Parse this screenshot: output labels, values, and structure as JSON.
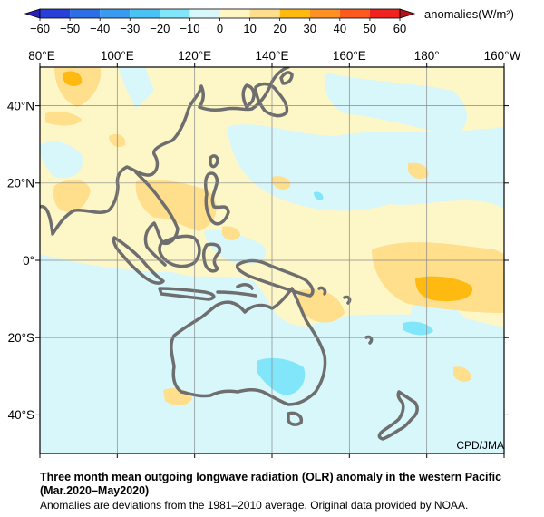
{
  "legend": {
    "unit_label": "anomalies(W/m²)",
    "ticks": [
      -60,
      -50,
      -40,
      -30,
      -20,
      -10,
      0,
      10,
      20,
      30,
      40,
      50,
      60
    ],
    "colors": [
      "#2a3fd8",
      "#2b6ee6",
      "#3a9cf0",
      "#49c3f6",
      "#82e6fb",
      "#d8f7fb",
      "#fff6c4",
      "#ffde8c",
      "#ffba12",
      "#ff9124",
      "#ff5a1e",
      "#f0211e"
    ]
  },
  "map": {
    "x_labels": [
      "80°E",
      "100°E",
      "120°E",
      "140°E",
      "160°E",
      "180°",
      "160°W"
    ],
    "y_labels": [
      "40°N",
      "20°N",
      "0°",
      "20°S",
      "40°S"
    ],
    "lon_range": [
      80,
      200
    ],
    "lat_range": [
      -50,
      50
    ],
    "grid": true,
    "palette": {
      "background": "#fdf6c7",
      "slightly_negative": "#d8f7fb",
      "negative": "#82e6fb",
      "positive": "#ffde8c",
      "strong_positive": "#ffba12",
      "coastline": "#6e6e6e"
    }
  },
  "credit": "CPD/JMA",
  "caption": {
    "line1": "Three month mean outgoing longwave radiation (OLR) anomaly in the western Pacific",
    "line2": "(Mar.2020–May2020)",
    "line3": "Anomalies are deviations from the 1981–2010 average. Original data provided by NOAA."
  }
}
